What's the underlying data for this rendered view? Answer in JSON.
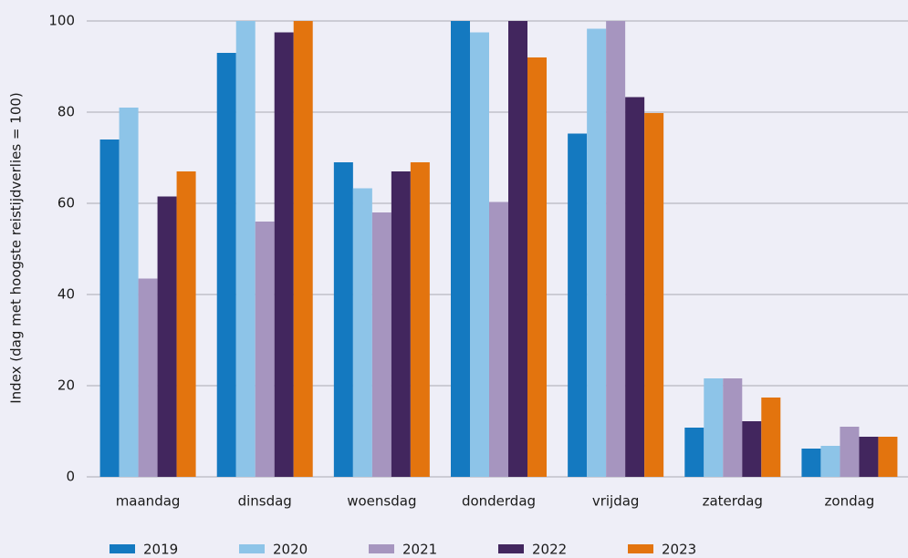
{
  "chart_data": {
    "type": "bar",
    "y_label": "Index (dag met hoogste reistijdverlies = 100)",
    "categories": [
      "maandag",
      "dinsdag",
      "woensdag",
      "donderdag",
      "vrijdag",
      "zaterdag",
      "zondag"
    ],
    "series": [
      {
        "name": "2019",
        "color": "#1479c0",
        "values": [
          74,
          93,
          69,
          100,
          75.3,
          10.8,
          6.2
        ]
      },
      {
        "name": "2020",
        "color": "#8dc4e8",
        "values": [
          81,
          100,
          63.3,
          97.5,
          98.3,
          21.6,
          6.8
        ]
      },
      {
        "name": "2021",
        "color": "#a695bf",
        "values": [
          43.5,
          56,
          58,
          60.3,
          100,
          21.6,
          11
        ]
      },
      {
        "name": "2022",
        "color": "#42265e",
        "values": [
          61.5,
          97.5,
          67,
          100,
          83.3,
          12.2,
          8.8
        ]
      },
      {
        "name": "2023",
        "color": "#e3740e",
        "values": [
          67,
          100,
          69,
          92,
          79.8,
          17.4,
          8.8
        ]
      }
    ],
    "ylim": [
      0,
      100
    ],
    "yticks": [
      0,
      20,
      40,
      60,
      80,
      100
    ],
    "grid": true,
    "legend": "bottom"
  }
}
